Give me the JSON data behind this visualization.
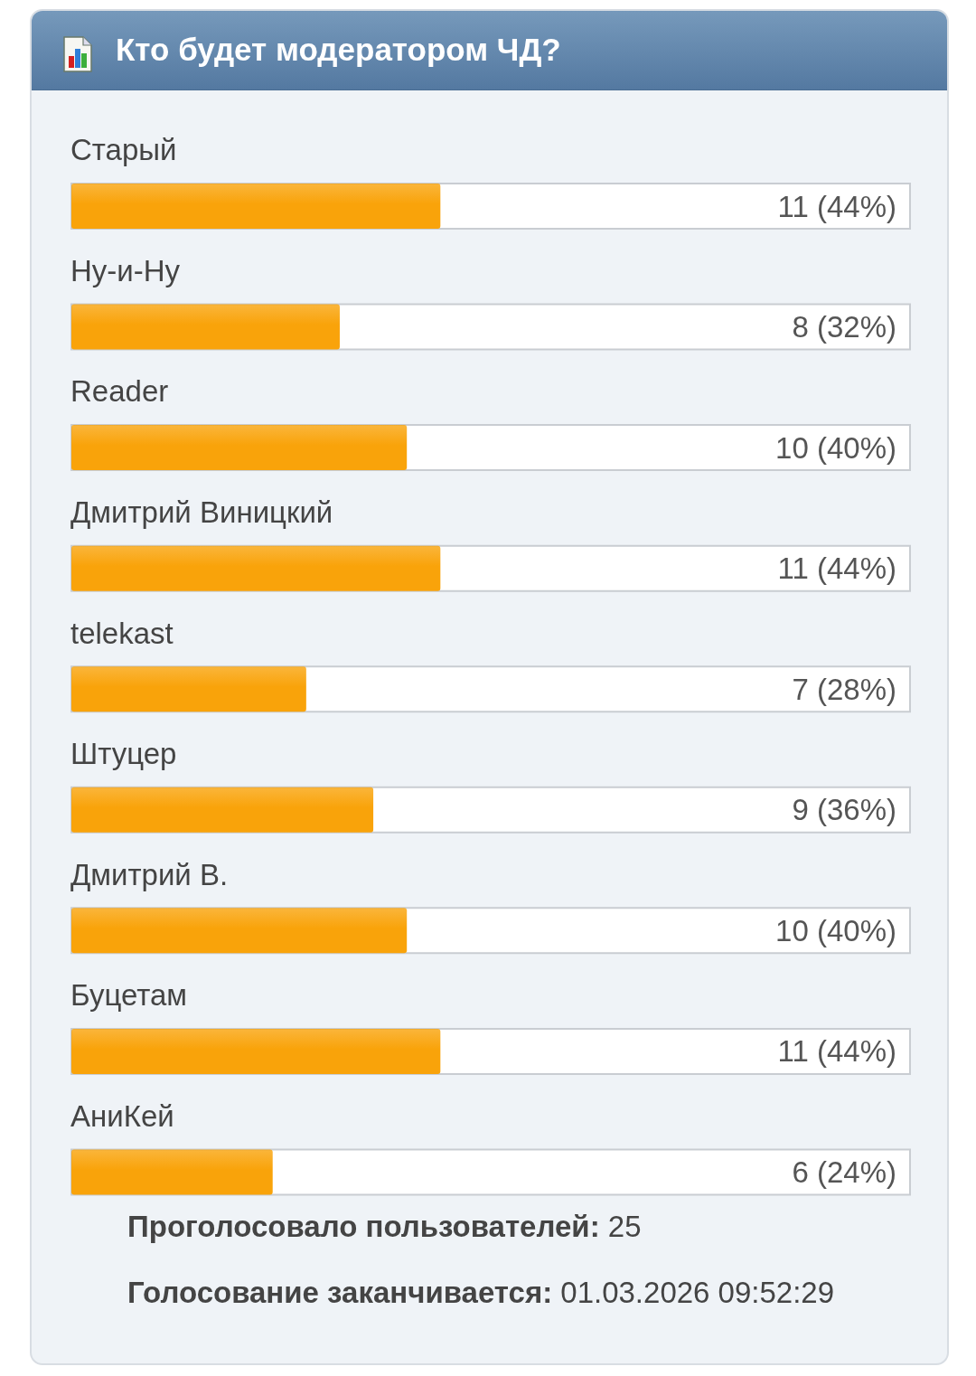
{
  "chart_data": {
    "type": "bar",
    "orientation": "horizontal",
    "title": "Кто будет модератором ЧД?",
    "categories": [
      "Старый",
      "Ну-и-Ну",
      "Reader",
      "Дмитрий Виницкий",
      "telekast",
      "Штуцер",
      "Дмитрий В.",
      "Буцетам",
      "АниКей"
    ],
    "values": [
      11,
      8,
      10,
      11,
      7,
      9,
      10,
      11,
      6
    ],
    "value_labels": [
      "11 (44%)",
      "8 (32%)",
      "10 (40%)",
      "11 (44%)",
      "7 (28%)",
      "9 (36%)",
      "10 (40%)",
      "11 (44%)",
      "6 (24%)"
    ],
    "color": "#f9a30a",
    "xlim": [
      0,
      25
    ],
    "tick_labels": "y",
    "annotations": [
      "Проголосовало пользователей: 25",
      "Голосование заканчивается: 01.03.2026 09:52:29"
    ]
  }
}
